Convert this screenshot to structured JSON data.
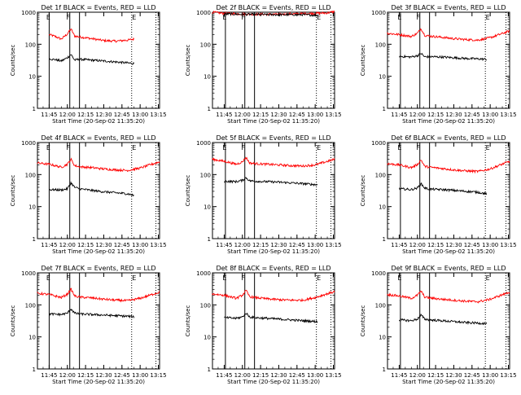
{
  "figure": {
    "background": "#ffffff",
    "axis_color": "#000000"
  },
  "shared": {
    "xlabel": "Start Time (20-Sep-02 11:35:20)",
    "ylabel": "Counts/sec",
    "x_tick_labels": [
      "11:45",
      "12:00",
      "12:15",
      "12:30",
      "12:45",
      "13:00",
      "13:15"
    ],
    "y_tick_labels": [
      "1",
      "10",
      "100",
      "1000"
    ],
    "marker_labels": {
      "left_solid": "E",
      "right_solid": "F",
      "dotted": "E"
    },
    "colors": {
      "events": "#000000",
      "lld": "#ff0000"
    }
  },
  "chart_data": [
    {
      "type": "line",
      "title": "Det 1f BLACK = Events, RED = LLD",
      "x_type": "time",
      "x_range": [
        "11:35:20",
        "13:16"
      ],
      "ylim": [
        1,
        1000
      ],
      "y_scale": "log",
      "markers": {
        "solid": [
          "11:45",
          "12:02",
          "12:10"
        ],
        "dotted": [
          "12:53",
          "13:13"
        ]
      },
      "series": [
        {
          "name": "LLD",
          "color": "#ff0000",
          "x": [
            "11:45",
            "11:50",
            "11:55",
            "12:00",
            "12:03",
            "12:06",
            "12:10",
            "12:20",
            "12:30",
            "12:40",
            "12:50",
            "12:55"
          ],
          "values": [
            200,
            175,
            145,
            210,
            300,
            180,
            170,
            150,
            130,
            125,
            135,
            145
          ],
          "start": "11:45",
          "end": "12:55"
        },
        {
          "name": "Events",
          "color": "#000000",
          "x": [
            "11:45",
            "11:50",
            "11:55",
            "12:00",
            "12:03",
            "12:06",
            "12:10",
            "12:20",
            "12:30",
            "12:40",
            "12:50",
            "12:55"
          ],
          "values": [
            35,
            33,
            30,
            38,
            48,
            32,
            34,
            32,
            30,
            28,
            26,
            25
          ],
          "start": "11:45",
          "end": "12:55"
        }
      ]
    },
    {
      "type": "line",
      "title": "Det 2f BLACK = Events, RED = LLD",
      "x_type": "time",
      "x_range": [
        "11:35:20",
        "13:16"
      ],
      "ylim": [
        1,
        1000
      ],
      "y_scale": "log",
      "markers": {
        "solid": [
          "11:46",
          "12:02",
          "12:10"
        ],
        "dotted": [
          "13:01",
          "13:13"
        ]
      },
      "series": [
        {
          "name": "LLD",
          "color": "#ff0000",
          "x": [
            "11:35",
            "11:45",
            "12:00",
            "12:10",
            "12:30",
            "12:50",
            "13:10",
            "13:16"
          ],
          "values": [
            1000,
            920,
            880,
            870,
            860,
            900,
            950,
            1050
          ],
          "start": "11:35",
          "end": "13:16"
        },
        {
          "name": "Events",
          "color": "#000000",
          "x": [
            "11:45",
            "12:00",
            "12:10",
            "12:30",
            "12:50",
            "13:02"
          ],
          "values": [
            880,
            860,
            850,
            840,
            840,
            800
          ],
          "start": "11:45",
          "end": "13:02"
        }
      ]
    },
    {
      "type": "line",
      "title": "Det 3f BLACK = Events, RED = LLD",
      "x_type": "time",
      "x_range": [
        "11:35:20",
        "13:16"
      ],
      "ylim": [
        1,
        1000
      ],
      "y_scale": "log",
      "markers": {
        "solid": [
          "11:46",
          "12:02",
          "12:10"
        ],
        "dotted": [
          "12:56",
          "13:13"
        ]
      },
      "series": [
        {
          "name": "LLD",
          "color": "#ff0000",
          "x": [
            "11:35",
            "11:45",
            "11:55",
            "12:00",
            "12:03",
            "12:06",
            "12:10",
            "12:20",
            "12:30",
            "12:40",
            "12:50",
            "13:00",
            "13:16"
          ],
          "values": [
            220,
            200,
            175,
            220,
            310,
            190,
            180,
            165,
            150,
            140,
            135,
            160,
            260
          ],
          "start": "11:35",
          "end": "13:16"
        },
        {
          "name": "Events",
          "color": "#000000",
          "x": [
            "11:45",
            "11:55",
            "12:00",
            "12:03",
            "12:06",
            "12:10",
            "12:20",
            "12:30",
            "12:40",
            "12:50",
            "12:57"
          ],
          "values": [
            42,
            40,
            44,
            52,
            40,
            41,
            40,
            38,
            36,
            35,
            34
          ],
          "start": "11:45",
          "end": "12:57"
        }
      ]
    },
    {
      "type": "line",
      "title": "Det 4f BLACK = Events, RED = LLD",
      "x_type": "time",
      "x_range": [
        "11:35:20",
        "13:16"
      ],
      "ylim": [
        1,
        1000
      ],
      "y_scale": "log",
      "markers": {
        "solid": [
          "11:45",
          "12:02",
          "12:10"
        ],
        "dotted": [
          "12:53",
          "13:13"
        ]
      },
      "series": [
        {
          "name": "LLD",
          "color": "#ff0000",
          "x": [
            "11:35",
            "11:45",
            "11:55",
            "12:00",
            "12:03",
            "12:06",
            "12:10",
            "12:20",
            "12:30",
            "12:40",
            "12:50",
            "13:00",
            "13:16"
          ],
          "values": [
            230,
            210,
            170,
            210,
            300,
            190,
            175,
            165,
            150,
            140,
            135,
            160,
            250
          ],
          "start": "11:35",
          "end": "13:16"
        },
        {
          "name": "Events",
          "color": "#000000",
          "x": [
            "11:45",
            "11:55",
            "12:00",
            "12:03",
            "12:06",
            "12:10",
            "12:20",
            "12:30",
            "12:40",
            "12:50",
            "12:55"
          ],
          "values": [
            34,
            33,
            36,
            55,
            40,
            36,
            32,
            29,
            27,
            25,
            22
          ],
          "start": "11:45",
          "end": "12:55"
        }
      ]
    },
    {
      "type": "line",
      "title": "Det 5f BLACK = Events, RED = LLD",
      "x_type": "time",
      "x_range": [
        "11:35:20",
        "13:16"
      ],
      "ylim": [
        1,
        1000
      ],
      "y_scale": "log",
      "markers": {
        "solid": [
          "11:46",
          "12:02",
          "12:10"
        ],
        "dotted": [
          "13:01",
          "13:13"
        ]
      },
      "series": [
        {
          "name": "LLD",
          "color": "#ff0000",
          "x": [
            "11:35",
            "11:45",
            "11:55",
            "12:00",
            "12:03",
            "12:06",
            "12:10",
            "12:20",
            "12:30",
            "12:40",
            "12:50",
            "13:00",
            "13:16"
          ],
          "values": [
            300,
            260,
            210,
            250,
            340,
            230,
            220,
            210,
            200,
            190,
            185,
            200,
            300
          ],
          "start": "11:35",
          "end": "13:16"
        },
        {
          "name": "Events",
          "color": "#000000",
          "x": [
            "11:45",
            "11:55",
            "12:00",
            "12:03",
            "12:06",
            "12:10",
            "12:20",
            "12:30",
            "12:40",
            "12:50",
            "13:02"
          ],
          "values": [
            62,
            60,
            66,
            80,
            64,
            62,
            60,
            58,
            55,
            52,
            48
          ],
          "start": "11:45",
          "end": "13:02"
        }
      ]
    },
    {
      "type": "line",
      "title": "Det 6f BLACK = Events, RED = LLD",
      "x_type": "time",
      "x_range": [
        "11:35:20",
        "13:16"
      ],
      "ylim": [
        1,
        1000
      ],
      "y_scale": "log",
      "markers": {
        "solid": [
          "11:46",
          "12:02",
          "12:10"
        ],
        "dotted": [
          "12:56",
          "13:13"
        ]
      },
      "series": [
        {
          "name": "LLD",
          "color": "#ff0000",
          "x": [
            "11:35",
            "11:45",
            "11:55",
            "12:00",
            "12:03",
            "12:06",
            "12:10",
            "12:20",
            "12:30",
            "12:40",
            "12:50",
            "13:00",
            "13:16"
          ],
          "values": [
            220,
            200,
            165,
            205,
            290,
            180,
            170,
            155,
            140,
            130,
            125,
            150,
            260
          ],
          "start": "11:35",
          "end": "13:16"
        },
        {
          "name": "Events",
          "color": "#000000",
          "x": [
            "11:45",
            "11:55",
            "12:00",
            "12:03",
            "12:06",
            "12:10",
            "12:20",
            "12:30",
            "12:40",
            "12:50",
            "12:57"
          ],
          "values": [
            36,
            34,
            38,
            52,
            38,
            35,
            34,
            32,
            30,
            28,
            25
          ],
          "start": "11:45",
          "end": "12:57"
        }
      ]
    },
    {
      "type": "line",
      "title": "Det 7f BLACK = Events, RED = LLD",
      "x_type": "time",
      "x_range": [
        "11:35:20",
        "13:16"
      ],
      "ylim": [
        1,
        1000
      ],
      "y_scale": "log",
      "markers": {
        "solid": [
          "11:45",
          "12:02",
          "12:10"
        ],
        "dotted": [
          "12:53",
          "13:13"
        ]
      },
      "series": [
        {
          "name": "LLD",
          "color": "#ff0000",
          "x": [
            "11:35",
            "11:45",
            "11:55",
            "12:00",
            "12:03",
            "12:06",
            "12:10",
            "12:20",
            "12:30",
            "12:40",
            "12:50",
            "13:00",
            "13:16"
          ],
          "values": [
            230,
            210,
            170,
            215,
            310,
            190,
            175,
            165,
            150,
            140,
            135,
            160,
            250
          ],
          "start": "11:35",
          "end": "13:16"
        },
        {
          "name": "Events",
          "color": "#000000",
          "x": [
            "11:45",
            "11:55",
            "12:00",
            "12:03",
            "12:06",
            "12:10",
            "12:20",
            "12:30",
            "12:40",
            "12:50",
            "12:55"
          ],
          "values": [
            52,
            50,
            55,
            75,
            55,
            52,
            50,
            48,
            46,
            44,
            42
          ],
          "start": "11:45",
          "end": "12:55"
        }
      ]
    },
    {
      "type": "line",
      "title": "Det 8f BLACK = Events, RED = LLD",
      "x_type": "time",
      "x_range": [
        "11:35:20",
        "13:16"
      ],
      "ylim": [
        1,
        1000
      ],
      "y_scale": "log",
      "markers": {
        "solid": [
          "11:46",
          "12:02",
          "12:10"
        ],
        "dotted": [
          "13:01",
          "13:13"
        ]
      },
      "series": [
        {
          "name": "LLD",
          "color": "#ff0000",
          "x": [
            "11:35",
            "11:45",
            "11:55",
            "12:00",
            "12:03",
            "12:06",
            "12:10",
            "12:20",
            "12:30",
            "12:40",
            "12:50",
            "13:00",
            "13:16"
          ],
          "values": [
            220,
            200,
            160,
            200,
            280,
            180,
            170,
            155,
            145,
            140,
            140,
            170,
            260
          ],
          "start": "11:35",
          "end": "13:16"
        },
        {
          "name": "Events",
          "color": "#000000",
          "x": [
            "11:45",
            "11:55",
            "12:00",
            "12:03",
            "12:06",
            "12:10",
            "12:20",
            "12:30",
            "12:40",
            "12:50",
            "13:02"
          ],
          "values": [
            40,
            38,
            42,
            55,
            42,
            40,
            38,
            36,
            34,
            32,
            30
          ],
          "start": "11:45",
          "end": "13:02"
        }
      ]
    },
    {
      "type": "line",
      "title": "Det 9f BLACK = Events, RED = LLD",
      "x_type": "time",
      "x_range": [
        "11:35:20",
        "13:16"
      ],
      "ylim": [
        1,
        1000
      ],
      "y_scale": "log",
      "markers": {
        "solid": [
          "11:46",
          "12:02",
          "12:10"
        ],
        "dotted": [
          "12:56",
          "13:13"
        ]
      },
      "series": [
        {
          "name": "LLD",
          "color": "#ff0000",
          "x": [
            "11:35",
            "11:45",
            "11:55",
            "12:00",
            "12:03",
            "12:06",
            "12:10",
            "12:20",
            "12:30",
            "12:40",
            "12:50",
            "13:00",
            "13:16"
          ],
          "values": [
            210,
            190,
            160,
            200,
            270,
            175,
            165,
            150,
            140,
            130,
            125,
            150,
            250
          ],
          "start": "11:35",
          "end": "13:16"
        },
        {
          "name": "Events",
          "color": "#000000",
          "x": [
            "11:45",
            "11:55",
            "12:00",
            "12:03",
            "12:06",
            "12:10",
            "12:20",
            "12:30",
            "12:40",
            "12:50",
            "12:57"
          ],
          "values": [
            34,
            32,
            36,
            48,
            36,
            34,
            32,
            30,
            28,
            27,
            26
          ],
          "start": "11:45",
          "end": "12:57"
        }
      ]
    }
  ]
}
